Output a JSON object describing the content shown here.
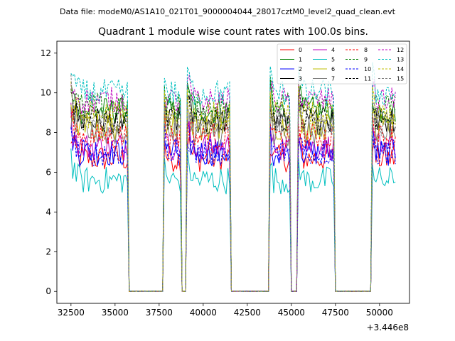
{
  "chart_data": {
    "type": "line",
    "suptitle": "Data file: modeM0/AS1A10_021T01_9000004044_28017cztM0_level2_quad_clean.evt",
    "title": "Quadrant 1 module wise count rates with 100.0s bins.",
    "xlabel": "",
    "ylabel": "",
    "x_offset_label": "+3.446e8",
    "xlim": [
      31700,
      51700
    ],
    "ylim": [
      -0.6,
      12.6
    ],
    "xticks": [
      32500,
      35000,
      37500,
      40000,
      42500,
      45000,
      47500,
      50000
    ],
    "xtick_labels": [
      "32500",
      "35000",
      "37500",
      "40000",
      "42500",
      "45000",
      "47500",
      "50000"
    ],
    "yticks": [
      0,
      2,
      4,
      6,
      8,
      10,
      12
    ],
    "ytick_labels": [
      "0",
      "2",
      "4",
      "6",
      "8",
      "10",
      "12"
    ],
    "legend_position": "top-right",
    "bin_seconds": 100,
    "active_intervals": [
      {
        "start": 32500,
        "end": 35700
      },
      {
        "start": 37800,
        "end": 38700
      },
      {
        "start": 39100,
        "end": 41500
      },
      {
        "start": 43800,
        "end": 44900
      },
      {
        "start": 45400,
        "end": 47400
      },
      {
        "start": 49600,
        "end": 50900
      }
    ],
    "series": [
      {
        "name": "0",
        "color": "#ff0000",
        "dashed": false,
        "level": 6.7
      },
      {
        "name": "1",
        "color": "#008000",
        "dashed": false,
        "level": 9.1
      },
      {
        "name": "2",
        "color": "#0000ff",
        "dashed": false,
        "level": 7.0
      },
      {
        "name": "3",
        "color": "#000000",
        "dashed": false,
        "level": 8.6
      },
      {
        "name": "4",
        "color": "#bf00bf",
        "dashed": false,
        "level": 7.3
      },
      {
        "name": "5",
        "color": "#00bfbf",
        "dashed": false,
        "level": 5.6
      },
      {
        "name": "6",
        "color": "#bfbf00",
        "dashed": false,
        "level": 8.3
      },
      {
        "name": "7",
        "color": "#808080",
        "dashed": false,
        "level": 8.0
      },
      {
        "name": "8",
        "color": "#ff0000",
        "dashed": true,
        "level": 7.8
      },
      {
        "name": "9",
        "color": "#008000",
        "dashed": true,
        "level": 9.3
      },
      {
        "name": "10",
        "color": "#0000ff",
        "dashed": true,
        "level": 7.0
      },
      {
        "name": "11",
        "color": "#000000",
        "dashed": true,
        "level": 8.6
      },
      {
        "name": "12",
        "color": "#bf00bf",
        "dashed": true,
        "level": 9.6
      },
      {
        "name": "13",
        "color": "#00bfbf",
        "dashed": true,
        "level": 10.0
      },
      {
        "name": "14",
        "color": "#bfbf00",
        "dashed": true,
        "level": 8.9
      },
      {
        "name": "15",
        "color": "#808080",
        "dashed": true,
        "level": 8.5
      }
    ]
  }
}
